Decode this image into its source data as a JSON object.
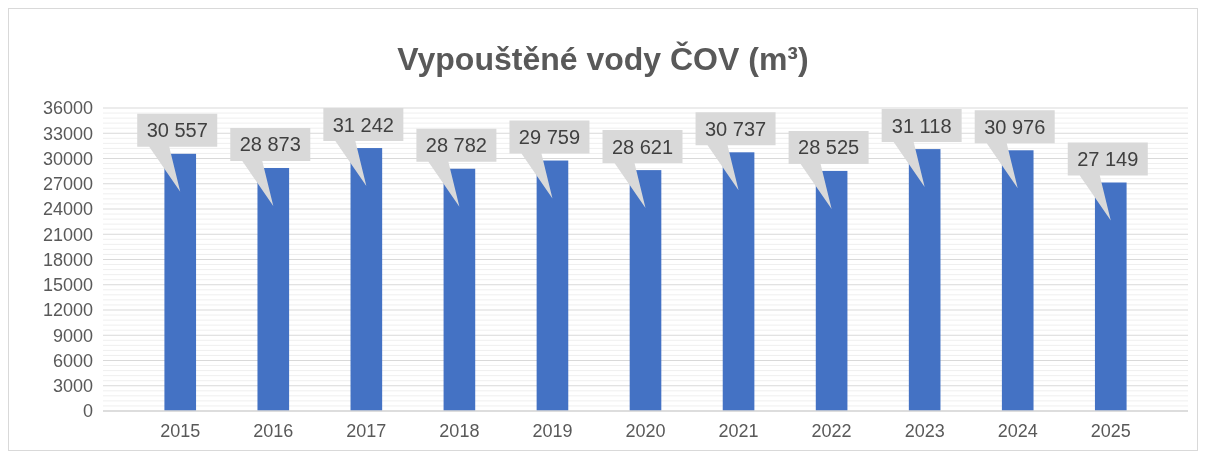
{
  "chart_data": {
    "type": "bar",
    "title": "Vypouštěné vody ČOV (m³)",
    "categories": [
      "2015",
      "2016",
      "2017",
      "2018",
      "2019",
      "2020",
      "2021",
      "2022",
      "2023",
      "2024",
      "2025"
    ],
    "values": [
      30557,
      28873,
      31242,
      28782,
      29759,
      28621,
      30737,
      28525,
      31118,
      30976,
      27149
    ],
    "value_labels": [
      "30 557",
      "28 873",
      "31 242",
      "28 782",
      "29 759",
      "28 621",
      "30 737",
      "28 525",
      "31 118",
      "30 976",
      "27 149"
    ],
    "color": "#4472c4",
    "ylim": [
      0,
      36000
    ],
    "yticks": [
      0,
      3000,
      6000,
      9000,
      12000,
      15000,
      18000,
      21000,
      24000,
      27000,
      30000,
      33000,
      36000
    ],
    "grid": "y"
  }
}
